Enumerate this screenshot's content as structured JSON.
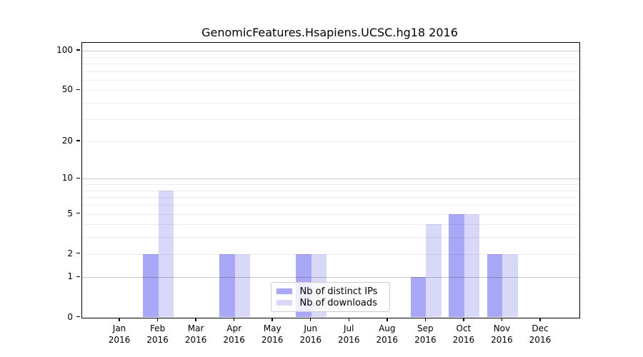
{
  "chart_data": {
    "type": "bar",
    "title": "GenomicFeatures.Hsapiens.UCSC.hg18 2016",
    "y_scale": "log10(1+x)",
    "y_ticks": [
      0,
      1,
      2,
      5,
      10,
      20,
      50,
      100
    ],
    "grid": {
      "minor": [
        2,
        3,
        4,
        5,
        6,
        7,
        8,
        9,
        20,
        30,
        40,
        50,
        60,
        70,
        80,
        90
      ],
      "major": [
        1,
        10,
        100
      ]
    },
    "x_tick_months": [
      "Jan",
      "Feb",
      "Mar",
      "Apr",
      "May",
      "Jun",
      "Jul",
      "Aug",
      "Sep",
      "Oct",
      "Nov",
      "Dec"
    ],
    "x_tick_year": "2016",
    "categories": [
      "Jan 2016",
      "Feb 2016",
      "Mar 2016",
      "Apr 2016",
      "May 2016",
      "Jun 2016",
      "Jul 2016",
      "Aug 2016",
      "Sep 2016",
      "Oct 2016",
      "Nov 2016",
      "Dec 2016"
    ],
    "series": [
      {
        "name": "Nb of distinct IPs",
        "color": "#a8a8f7",
        "values": [
          0,
          2,
          0,
          2,
          0,
          2,
          0,
          0,
          1,
          5,
          2,
          0
        ]
      },
      {
        "name": "Nb of downloads",
        "color": "#d8d8f9",
        "values": [
          0,
          8,
          0,
          2,
          0,
          2,
          0,
          0,
          4,
          5,
          2,
          0
        ]
      }
    ],
    "legend_position": "inside-bottom-center",
    "axis_color": "#000000",
    "background_color": "#ffffff"
  }
}
